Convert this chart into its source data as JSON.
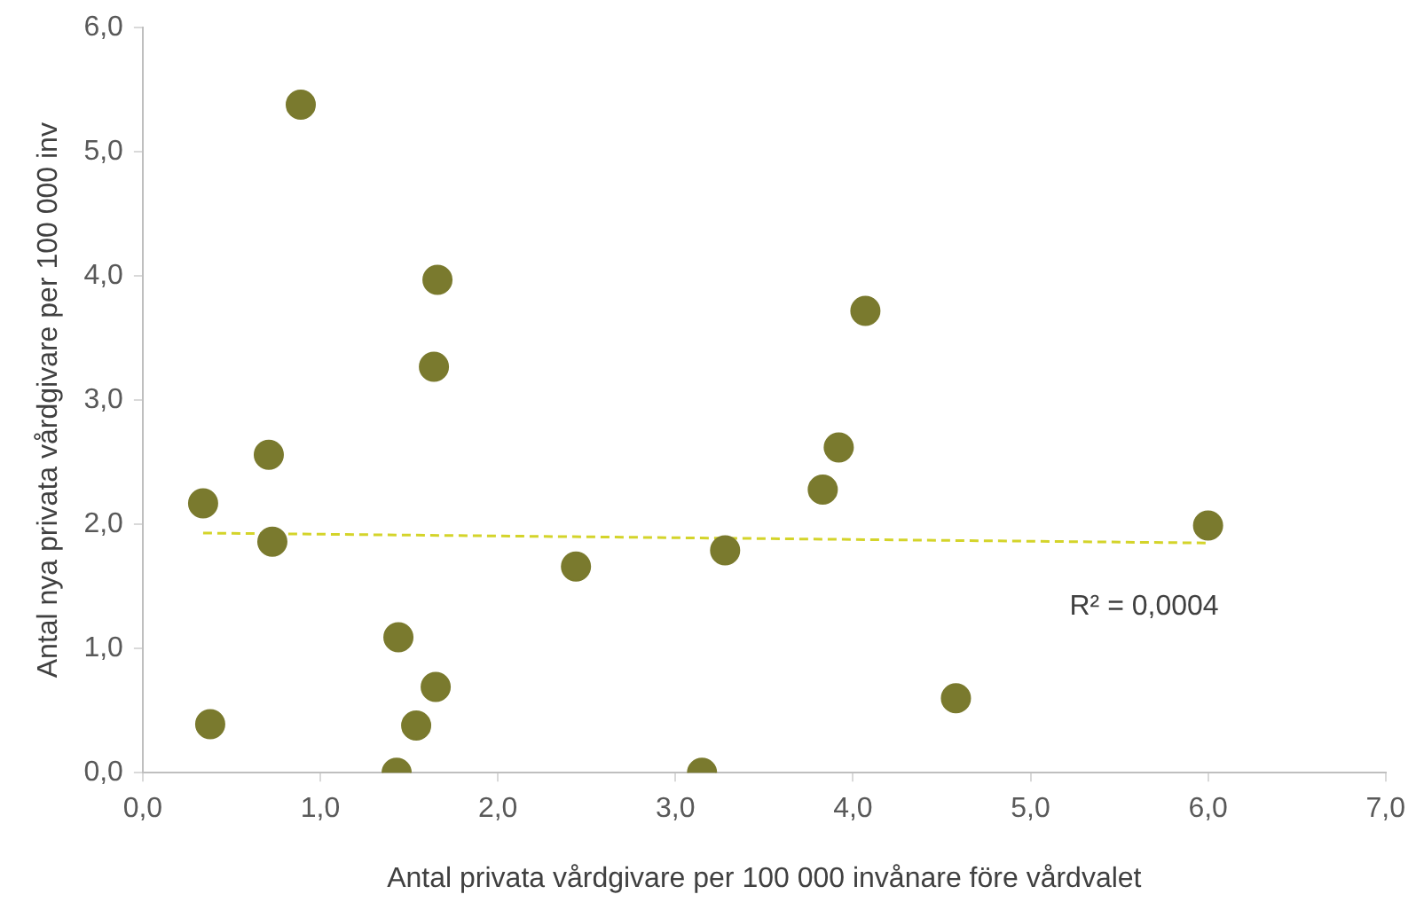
{
  "chart_data": {
    "type": "scatter",
    "xlabel": "Antal privata vårdgivare per 100 000 invånare före vårdvalet",
    "ylabel": "Antal nya privata vårdgivare per 100 000 inv",
    "series": [
      {
        "color": "#7a7a2e",
        "marker": "circle",
        "x": [
          0.34,
          0.38,
          0.71,
          0.73,
          0.89,
          1.43,
          1.44,
          1.54,
          1.64,
          1.66,
          1.65,
          2.44,
          3.15,
          3.28,
          3.83,
          3.92,
          4.07,
          4.58,
          6.0
        ],
        "values": [
          2.17,
          0.39,
          2.56,
          1.86,
          5.38,
          0.0,
          1.09,
          0.38,
          3.27,
          3.97,
          0.69,
          1.66,
          0.0,
          1.79,
          2.28,
          2.62,
          3.72,
          0.6,
          1.99
        ]
      },
      {
        "type": "line",
        "color": "#d4d42a",
        "line_style": "dashed",
        "marker": "none",
        "x": [
          0.34,
          6.0
        ],
        "values": [
          1.93,
          1.85
        ]
      }
    ],
    "xlim": [
      0,
      7
    ],
    "xticks": [
      {
        "value": 0,
        "label": "0,0"
      },
      {
        "value": 1,
        "label": "1,0"
      },
      {
        "value": 2,
        "label": "2,0"
      },
      {
        "value": 3,
        "label": "3,0"
      },
      {
        "value": 4,
        "label": "4,0"
      },
      {
        "value": 5,
        "label": "5,0"
      },
      {
        "value": 6,
        "label": "6,0"
      },
      {
        "value": 7,
        "label": "7,0"
      }
    ],
    "ylim": [
      0,
      6
    ],
    "yticks": [
      {
        "value": 0,
        "label": "0,0"
      },
      {
        "value": 1,
        "label": "1,0"
      },
      {
        "value": 2,
        "label": "2,0"
      },
      {
        "value": 3,
        "label": "3,0"
      },
      {
        "value": 4,
        "label": "4,0"
      },
      {
        "value": 5,
        "label": "5,0"
      },
      {
        "value": 6,
        "label": "6,0"
      }
    ],
    "annotations": [
      "R² = 0,0004"
    ],
    "grid": false,
    "legend": false
  }
}
